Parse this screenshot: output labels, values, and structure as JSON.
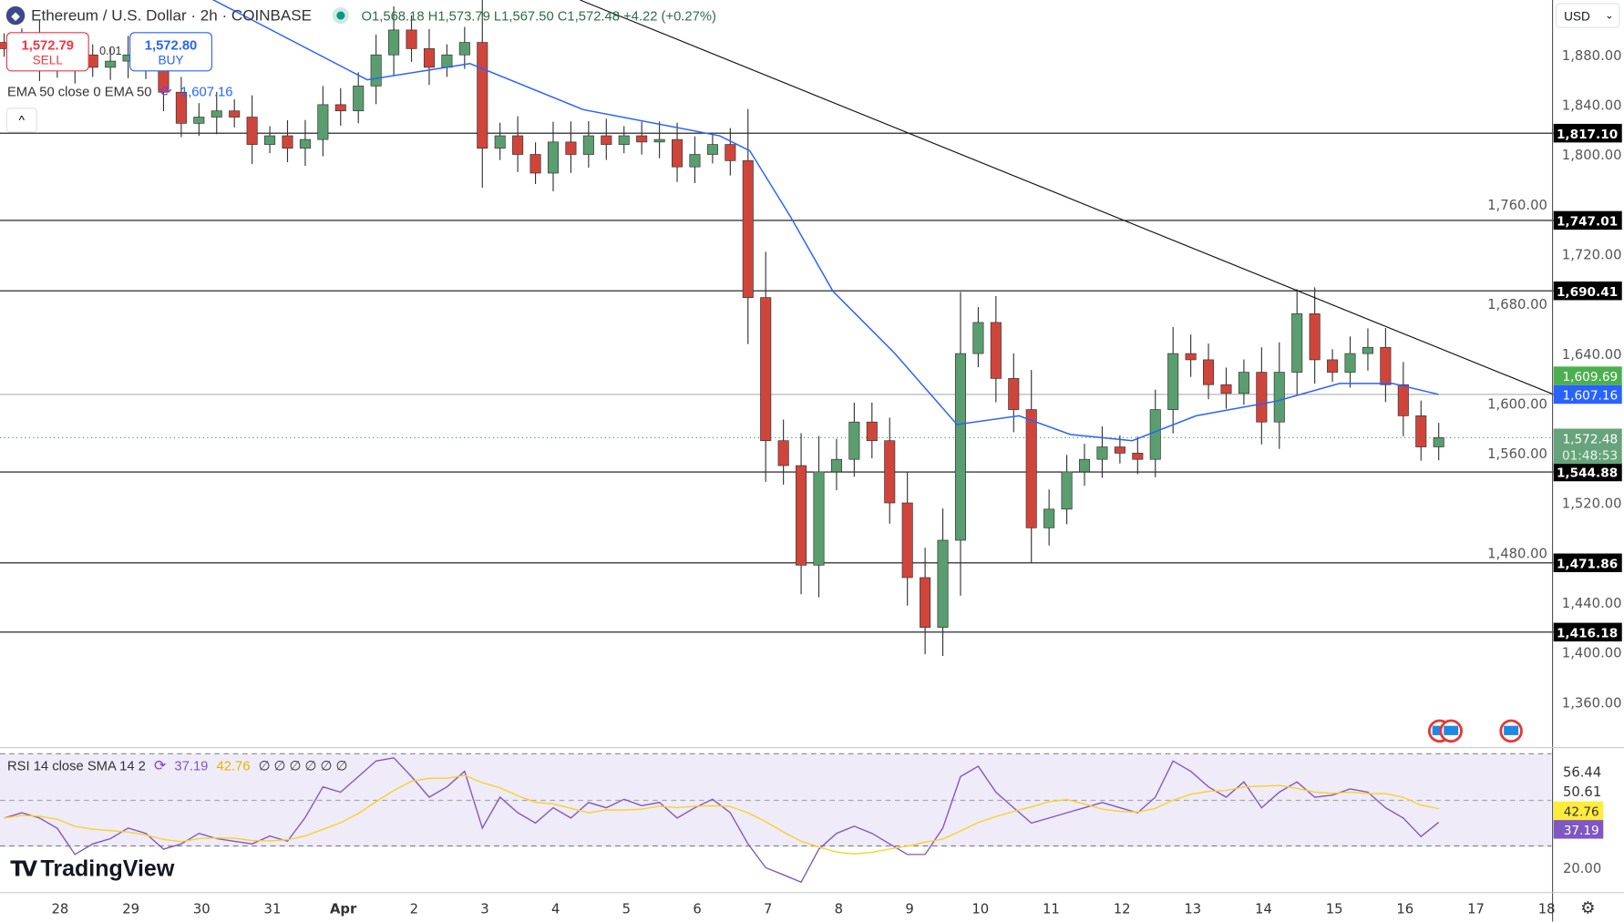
{
  "header": {
    "symbol": "Ethereum / U.S. Dollar · 2h · COINBASE",
    "ohlc": "O1,568.18 H1,573.79 L1,567.50 C1,572.48 +4.22 (+0.27%)"
  },
  "trade": {
    "sell_price": "1,572.79",
    "sell_label": "SELL",
    "buy_price": "1,572.80",
    "buy_label": "BUY",
    "spread": "0.01"
  },
  "ema_legend": {
    "label": "EMA 50 close 0 EMA 50",
    "value": "1,607.16"
  },
  "rsi_legend": {
    "label": "RSI 14 close SMA 14 2",
    "rsi": "37.19",
    "sma": "42.76",
    "extras": "∅ ∅ ∅ ∅ ∅ ∅"
  },
  "currency": "USD",
  "brand": "TradingView",
  "colors": {
    "up": "#5a9e6f",
    "down": "#d0453b",
    "ema": "#2962ff",
    "rsi": "#7e57c2",
    "rsi_sma": "#f5d327",
    "rsi_bg": "#efebf8"
  },
  "chart_data": {
    "type": "candlestick",
    "price_axis": {
      "ticks": [
        1880,
        1840,
        1800,
        1760,
        1720,
        1680,
        1640,
        1600,
        1560,
        1520,
        1480,
        1440,
        1400,
        1360
      ],
      "tick_labels": [
        "1,880.00",
        "1,840.00",
        "1,800.00",
        "1,760.00",
        "1,720.00",
        "1,680.00",
        "1,640.00",
        "1,600.00",
        "1,560.00",
        "1,520.00",
        "1,480.00",
        "1,440.00",
        "1,400.00",
        "1,360.00"
      ]
    },
    "x_labels": [
      "28",
      "29",
      "30",
      "31",
      "Apr",
      "2",
      "3",
      "4",
      "5",
      "6",
      "7",
      "8",
      "9",
      "10",
      "11",
      "12",
      "13",
      "14",
      "15",
      "16",
      "17",
      "18"
    ],
    "closes": [
      1885,
      1890,
      1875,
      1870,
      1880,
      1870,
      1875,
      1880,
      1870,
      1850,
      1825,
      1830,
      1835,
      1830,
      1808,
      1815,
      1805,
      1812,
      1840,
      1835,
      1855,
      1880,
      1900,
      1885,
      1870,
      1880,
      1890,
      1805,
      1815,
      1800,
      1785,
      1810,
      1800,
      1815,
      1808,
      1815,
      1810,
      1812,
      1790,
      1800,
      1808,
      1795,
      1685,
      1570,
      1550,
      1470,
      1545,
      1555,
      1585,
      1570,
      1520,
      1460,
      1420,
      1490,
      1640,
      1665,
      1620,
      1595,
      1500,
      1515,
      1545,
      1555,
      1565,
      1560,
      1555,
      1595,
      1640,
      1635,
      1615,
      1608,
      1625,
      1585,
      1625,
      1672,
      1635,
      1625,
      1640,
      1645,
      1615,
      1590,
      1565,
      1572.48
    ],
    "ema50": [
      [
        11.7,
        1925
      ],
      [
        20.5,
        1860
      ],
      [
        26.3,
        1873
      ],
      [
        32.7,
        1836
      ],
      [
        40.4,
        1815
      ],
      [
        42.1,
        1803
      ],
      [
        44.4,
        1750
      ],
      [
        46.8,
        1690
      ],
      [
        50.3,
        1640
      ],
      [
        53.8,
        1583
      ],
      [
        57.3,
        1590
      ],
      [
        60.2,
        1575
      ],
      [
        63.7,
        1570
      ],
      [
        67.3,
        1590
      ],
      [
        71.9,
        1602
      ],
      [
        75.4,
        1616
      ],
      [
        78.4,
        1616
      ],
      [
        81,
        1607.16
      ]
    ],
    "levels": [
      {
        "value": 1817.1,
        "label": "1,817.10"
      },
      {
        "value": 1747.01,
        "label": "1,747.01"
      },
      {
        "value": 1690.41,
        "label": "1,690.41"
      },
      {
        "value": 1544.88,
        "label": "1,544.88"
      },
      {
        "value": 1471.86,
        "label": "1,471.86"
      },
      {
        "value": 1416.18,
        "label": "1,416.18"
      }
    ],
    "trendline": [
      [
        1980,
        1925
      ],
      [
        1610,
        1607.16
      ]
    ],
    "price_tags": {
      "trend": "1,609.69",
      "ema": "1,607.16",
      "last": "1,572.48",
      "countdown": "01:48:53"
    },
    "rsi": {
      "values": [
        38.8,
        40.8,
        38.8,
        34.9,
        25,
        29,
        31,
        35,
        33,
        27,
        29,
        33,
        31,
        30,
        29,
        32,
        30,
        39,
        50.6,
        48.6,
        54.5,
        60.4,
        61.6,
        54.5,
        46.7,
        50.6,
        56.5,
        35,
        46.7,
        40.8,
        36.9,
        42.7,
        38.8,
        44.7,
        42.7,
        45.9,
        43.5,
        44.7,
        38.8,
        42.7,
        45.9,
        40.8,
        29,
        20,
        17.3,
        14.5,
        27,
        33,
        35.7,
        33,
        29,
        25,
        25,
        35,
        54.5,
        58.4,
        48.6,
        42.7,
        36.9,
        38.8,
        40.8,
        42.7,
        44.7,
        42.7,
        40.8,
        46.7,
        60.4,
        56.5,
        50.6,
        46.7,
        52.5,
        42.7,
        48.6,
        52.5,
        46.7,
        47.5,
        49.8,
        48.6,
        42.7,
        38.8,
        31.8,
        37.19
      ],
      "axis_labels": [
        "56.44",
        "50.61",
        "20.00"
      ],
      "rsi_tag": "37.19",
      "sma_tag": "42.76"
    }
  }
}
